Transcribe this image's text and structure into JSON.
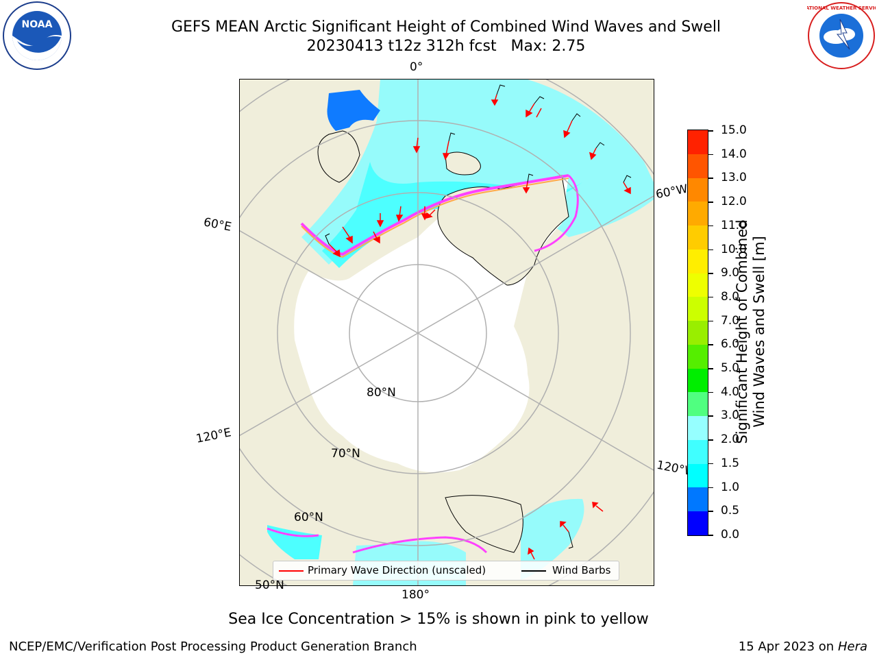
{
  "title": {
    "line1": "GEFS MEAN Arctic Significant Height of Combined Wind Waves and Swell",
    "line2": "20230413 t12z 312h fcst   Max: 2.75"
  },
  "logos": {
    "left": "NOAA",
    "right": "NATIONAL WEATHER SERVICE"
  },
  "map": {
    "labels": {
      "lon_0": "0°",
      "lon_60e": "60°E",
      "lon_60w": "60°W",
      "lon_120e": "120°E",
      "lon_120w": "120°W",
      "lon_180": "180°",
      "lat_80": "80°N",
      "lat_70": "70°N",
      "lat_60": "60°N",
      "lat_50": "50°N"
    },
    "colors": {
      "land": "#f0eedb",
      "ice": "#ffffff",
      "grid": "#b0b0b0",
      "wave_light": "#96fbfb",
      "wave_cyan": "#4dffff",
      "wave_blue": "#0f7bff",
      "ice_edge_pink": "#ff40ff",
      "ice_edge_orange": "#ffa84a",
      "arrow": "#ff0000"
    }
  },
  "legend": {
    "primary": "Primary Wave Direction (unscaled)",
    "barbs": "Wind Barbs"
  },
  "colorbar": {
    "title_line1": "Significant Height of Combined",
    "title_line2": "Wind Waves and Swell [m]",
    "ticks": [
      "0.0",
      "0.5",
      "1.0",
      "1.5",
      "2.0",
      "3.0",
      "4.0",
      "5.0",
      "6.0",
      "7.0",
      "8.0",
      "9.0",
      "10.0",
      "11.0",
      "12.0",
      "13.0",
      "14.0",
      "15.0"
    ],
    "colors": [
      "#0000ff",
      "#0078ff",
      "#00ffff",
      "#40ffff",
      "#96ffff",
      "#50ff80",
      "#00ee00",
      "#55ee00",
      "#99ee00",
      "#ccff00",
      "#eeff00",
      "#ffee00",
      "#ffcc00",
      "#ffaa00",
      "#ff8800",
      "#ff5500",
      "#ff2200"
    ]
  },
  "note": "Sea Ice Concentration > 15% is shown in pink to yellow",
  "footer": {
    "left": "NCEP/EMC/Verification Post Processing Product Generation Branch",
    "date": "15 Apr 2023 on ",
    "machine": "Hera"
  }
}
